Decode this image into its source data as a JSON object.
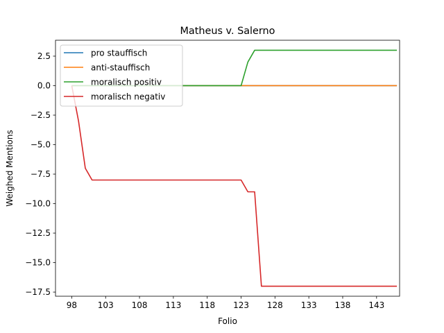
{
  "chart_data": {
    "type": "line",
    "title": "Matheus v. Salerno",
    "xlabel": "Folio",
    "ylabel": "Weighed Mentions",
    "xlim": [
      95.6,
      146.4
    ],
    "ylim": [
      -17.85,
      3.85
    ],
    "xticks": [
      98,
      103,
      108,
      113,
      118,
      123,
      128,
      133,
      138,
      143
    ],
    "yticks": [
      2.5,
      0.0,
      -2.5,
      -5.0,
      -7.5,
      -10.0,
      -12.5,
      -15.0,
      -17.5
    ],
    "ytick_labels": [
      "2.5",
      "0.0",
      "−2.5",
      "−5.0",
      "−7.5",
      "−10.0",
      "−12.5",
      "−15.0",
      "−17.5"
    ],
    "grid": false,
    "legend_position": "upper-left",
    "series": [
      {
        "name": "pro stauffisch",
        "color": "#1f77b4",
        "x": [
          98,
          146
        ],
        "y": [
          0,
          0
        ]
      },
      {
        "name": "anti-stauffisch",
        "color": "#ff7f0e",
        "x": [
          98,
          146
        ],
        "y": [
          0,
          0
        ]
      },
      {
        "name": "moralisch positiv",
        "color": "#2ca02c",
        "x": [
          98,
          123,
          124,
          125,
          146
        ],
        "y": [
          0,
          0,
          2,
          3,
          3
        ]
      },
      {
        "name": "moralisch negativ",
        "color": "#d62728",
        "x": [
          98,
          99,
          100,
          101,
          123,
          124,
          125,
          126,
          146
        ],
        "y": [
          0,
          -3,
          -7,
          -8,
          -8,
          -9,
          -9,
          -17,
          -17
        ]
      }
    ]
  }
}
